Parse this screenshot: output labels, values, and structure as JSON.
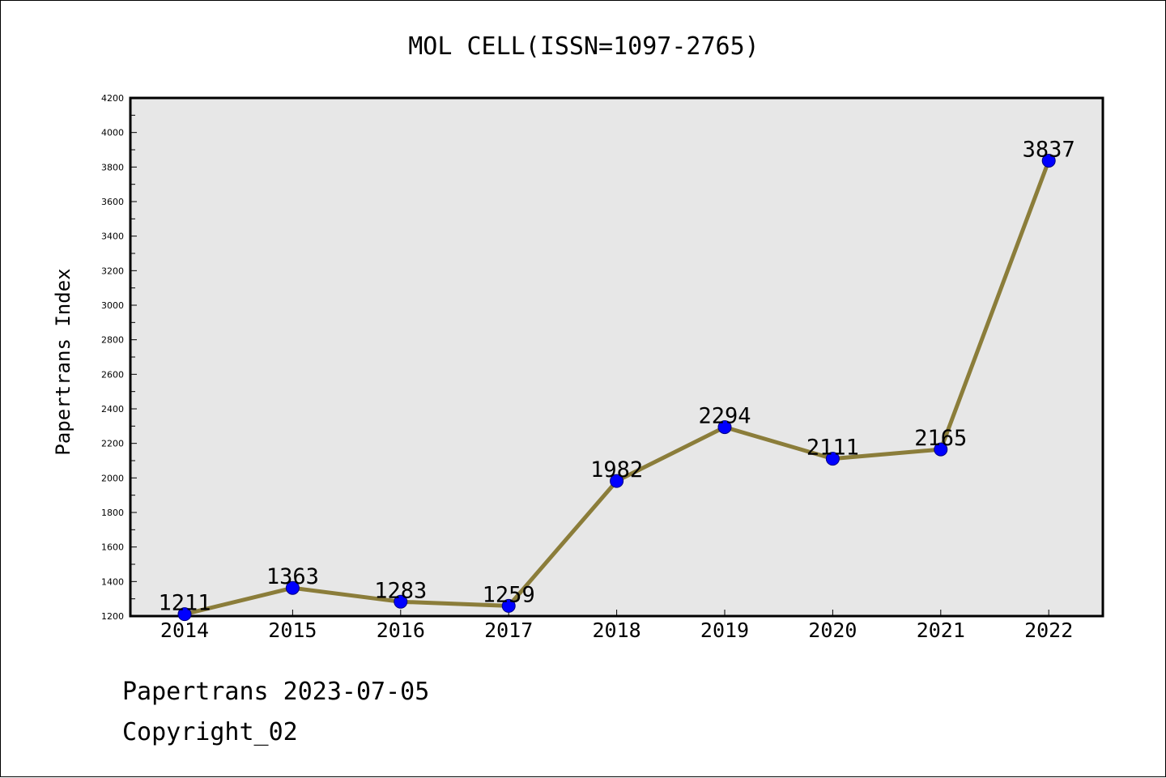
{
  "chart_data": {
    "type": "line",
    "title": "MOL CELL(ISSN=1097-2765)",
    "xlabel": "",
    "ylabel": "Papertrans Index",
    "categories": [
      "2014",
      "2015",
      "2016",
      "2017",
      "2018",
      "2019",
      "2020",
      "2021",
      "2022"
    ],
    "values": [
      1211,
      1363,
      1283,
      1259,
      1982,
      2294,
      2111,
      2165,
      3837
    ],
    "ylim": [
      1200,
      4200
    ],
    "y_ticks": [
      "1200",
      "1400",
      "1600",
      "1800",
      "2000",
      "2200",
      "2400",
      "2600",
      "2800",
      "3000",
      "3200",
      "3400",
      "3600",
      "3800",
      "4000",
      "4200"
    ],
    "data_labels": [
      "1211",
      "1363",
      "1283",
      "1259",
      "1982",
      "2294",
      "2111",
      "2165",
      "3837"
    ],
    "grid": false,
    "legend": "none",
    "colors": {
      "line": "#8B7D3A",
      "marker_fill": "#0000FF",
      "marker_edge": "#000080",
      "plot_background": "#E7E7E7",
      "axes": "#000000"
    }
  },
  "footer": {
    "date_line": "Papertrans 2023-07-05",
    "copyright_line": "Copyright_02"
  }
}
